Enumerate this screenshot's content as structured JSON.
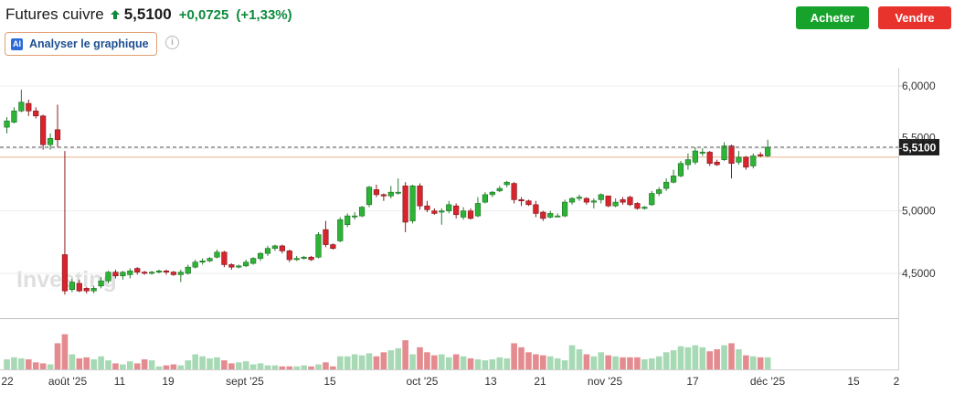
{
  "header": {
    "title": "Futures cuivre",
    "price": "5,5100",
    "change": "+0,0725",
    "change_pct": "(+1,33%)",
    "arrow_icon": "arrow-up-icon",
    "up_color": "#0e8a3c"
  },
  "buttons": {
    "buy_label": "Acheter",
    "sell_label": "Vendre",
    "buy_color": "#17a32b",
    "sell_color": "#e8332d"
  },
  "ai_button": {
    "badge": "AI",
    "label": "Analyser le graphique",
    "info_icon": "info-icon"
  },
  "watermark": "Investing",
  "chart_data": {
    "type": "candlestick",
    "y_range": [
      4.15,
      6.15
    ],
    "y_ticks": [
      "6,0000",
      "5,5000",
      "5,0000",
      "4,5000"
    ],
    "last_price_label": "5,5100",
    "x_tick_labels": [
      "22",
      "août '25",
      "11",
      "19",
      "sept '25",
      "15",
      "oct '25",
      "13",
      "21",
      "nov '25",
      "17",
      "déc '25",
      "15",
      "2"
    ],
    "up_color": "#2db336",
    "down_color": "#d8252d",
    "candles": [
      [
        5.67,
        5.72,
        5.62,
        5.75
      ],
      [
        5.71,
        5.8,
        5.7,
        5.83
      ],
      [
        5.8,
        5.87,
        5.79,
        5.97
      ],
      [
        5.86,
        5.8,
        5.76,
        5.89
      ],
      [
        5.8,
        5.76,
        5.74,
        5.83
      ],
      [
        5.76,
        5.53,
        5.49,
        5.77
      ],
      [
        5.53,
        5.58,
        5.49,
        5.62
      ],
      [
        5.65,
        5.57,
        5.51,
        5.85
      ],
      [
        4.65,
        4.36,
        4.33,
        5.48
      ],
      [
        4.37,
        4.43,
        4.35,
        4.46
      ],
      [
        4.42,
        4.36,
        4.35,
        4.45
      ],
      [
        4.38,
        4.36,
        4.34,
        4.39
      ],
      [
        4.36,
        4.38,
        4.34,
        4.4
      ],
      [
        4.4,
        4.44,
        4.38,
        4.47
      ],
      [
        4.44,
        4.51,
        4.42,
        4.52
      ],
      [
        4.51,
        4.48,
        4.46,
        4.53
      ],
      [
        4.48,
        4.51,
        4.45,
        4.52
      ],
      [
        4.49,
        4.52,
        4.46,
        4.54
      ],
      [
        4.54,
        4.51,
        4.49,
        4.55
      ],
      [
        4.51,
        4.5,
        4.49,
        4.52
      ],
      [
        4.5,
        4.51,
        4.49,
        4.52
      ],
      [
        4.51,
        4.52,
        4.5,
        4.53
      ],
      [
        4.52,
        4.51,
        4.49,
        4.53
      ],
      [
        4.51,
        4.49,
        4.48,
        4.52
      ],
      [
        4.49,
        4.51,
        4.43,
        4.53
      ],
      [
        4.5,
        4.55,
        4.49,
        4.57
      ],
      [
        4.55,
        4.59,
        4.54,
        4.61
      ],
      [
        4.59,
        4.6,
        4.57,
        4.62
      ],
      [
        4.6,
        4.62,
        4.59,
        4.63
      ],
      [
        4.63,
        4.67,
        4.62,
        4.69
      ],
      [
        4.67,
        4.57,
        4.55,
        4.68
      ],
      [
        4.57,
        4.55,
        4.53,
        4.58
      ],
      [
        4.55,
        4.56,
        4.54,
        4.57
      ],
      [
        4.56,
        4.59,
        4.55,
        4.61
      ],
      [
        4.58,
        4.62,
        4.57,
        4.63
      ],
      [
        4.62,
        4.66,
        4.6,
        4.67
      ],
      [
        4.66,
        4.7,
        4.64,
        4.72
      ],
      [
        4.7,
        4.72,
        4.68,
        4.73
      ],
      [
        4.72,
        4.68,
        4.66,
        4.73
      ],
      [
        4.68,
        4.61,
        4.59,
        4.69
      ],
      [
        4.61,
        4.62,
        4.6,
        4.64
      ],
      [
        4.62,
        4.63,
        4.61,
        4.64
      ],
      [
        4.63,
        4.61,
        4.6,
        4.64
      ],
      [
        4.63,
        4.81,
        4.62,
        4.83
      ],
      [
        4.85,
        4.73,
        4.71,
        4.92
      ],
      [
        4.73,
        4.7,
        4.69,
        4.74
      ],
      [
        4.76,
        4.93,
        4.75,
        4.95
      ],
      [
        4.89,
        4.96,
        4.87,
        4.98
      ],
      [
        4.96,
        4.96,
        4.93,
        4.99
      ],
      [
        4.96,
        5.03,
        4.95,
        5.04
      ],
      [
        5.05,
        5.19,
        5.03,
        5.2
      ],
      [
        5.17,
        5.13,
        5.11,
        5.21
      ],
      [
        5.13,
        5.12,
        5.08,
        5.14
      ],
      [
        5.12,
        5.15,
        5.1,
        5.2
      ],
      [
        5.15,
        5.15,
        5.13,
        5.26
      ],
      [
        5.2,
        4.91,
        4.83,
        5.23
      ],
      [
        4.92,
        5.2,
        4.9,
        5.21
      ],
      [
        5.2,
        5.04,
        5.01,
        5.22
      ],
      [
        5.04,
        5.01,
        4.99,
        5.08
      ],
      [
        5.0,
        4.98,
        4.97,
        5.02
      ],
      [
        4.99,
        5.0,
        4.89,
        5.02
      ],
      [
        5.0,
        5.05,
        4.98,
        5.08
      ],
      [
        5.04,
        4.97,
        4.94,
        5.06
      ],
      [
        4.95,
        5.0,
        4.93,
        5.03
      ],
      [
        5.0,
        4.94,
        4.93,
        5.02
      ],
      [
        4.96,
        5.06,
        4.95,
        5.11
      ],
      [
        5.07,
        5.13,
        5.06,
        5.15
      ],
      [
        5.13,
        5.15,
        5.11,
        5.16
      ],
      [
        5.16,
        5.18,
        5.15,
        5.2
      ],
      [
        5.21,
        5.23,
        5.19,
        5.24
      ],
      [
        5.22,
        5.09,
        5.06,
        5.23
      ],
      [
        5.09,
        5.08,
        5.04,
        5.11
      ],
      [
        5.08,
        5.05,
        5.04,
        5.09
      ],
      [
        5.05,
        4.98,
        4.95,
        5.08
      ],
      [
        4.99,
        4.94,
        4.92,
        5.0
      ],
      [
        4.95,
        4.98,
        4.94,
        5.0
      ],
      [
        4.96,
        4.96,
        4.95,
        4.98
      ],
      [
        4.96,
        5.07,
        4.95,
        5.09
      ],
      [
        5.07,
        5.1,
        5.05,
        5.11
      ],
      [
        5.1,
        5.11,
        5.08,
        5.13
      ],
      [
        5.1,
        5.07,
        5.05,
        5.11
      ],
      [
        5.07,
        5.08,
        5.02,
        5.1
      ],
      [
        5.09,
        5.13,
        5.06,
        5.14
      ],
      [
        5.12,
        5.04,
        5.03,
        5.12
      ],
      [
        5.04,
        5.07,
        5.03,
        5.1
      ],
      [
        5.09,
        5.07,
        5.05,
        5.11
      ],
      [
        5.11,
        5.05,
        5.04,
        5.12
      ],
      [
        5.06,
        5.02,
        5.01,
        5.07
      ],
      [
        5.02,
        5.03,
        5.01,
        5.04
      ],
      [
        5.05,
        5.14,
        5.04,
        5.16
      ],
      [
        5.14,
        5.17,
        5.12,
        5.19
      ],
      [
        5.18,
        5.23,
        5.16,
        5.26
      ],
      [
        5.23,
        5.28,
        5.22,
        5.33
      ],
      [
        5.28,
        5.38,
        5.27,
        5.4
      ],
      [
        5.37,
        5.41,
        5.33,
        5.46
      ],
      [
        5.39,
        5.48,
        5.37,
        5.51
      ],
      [
        5.47,
        5.47,
        5.44,
        5.5
      ],
      [
        5.47,
        5.38,
        5.36,
        5.48
      ],
      [
        5.39,
        5.37,
        5.36,
        5.41
      ],
      [
        5.41,
        5.52,
        5.4,
        5.55
      ],
      [
        5.52,
        5.38,
        5.26,
        5.53
      ],
      [
        5.39,
        5.43,
        5.37,
        5.48
      ],
      [
        5.43,
        5.35,
        5.33,
        5.44
      ],
      [
        5.36,
        5.44,
        5.34,
        5.46
      ],
      [
        5.45,
        5.44,
        5.43,
        5.47
      ],
      [
        5.44,
        5.51,
        5.43,
        5.57
      ]
    ],
    "volumes": [
      0.2,
      0.24,
      0.22,
      0.2,
      0.14,
      0.12,
      0.1,
      0.52,
      0.7,
      0.3,
      0.22,
      0.24,
      0.2,
      0.26,
      0.18,
      0.12,
      0.1,
      0.16,
      0.12,
      0.2,
      0.18,
      0.06,
      0.08,
      0.1,
      0.08,
      0.18,
      0.3,
      0.26,
      0.22,
      0.24,
      0.18,
      0.12,
      0.14,
      0.16,
      0.1,
      0.12,
      0.08,
      0.08,
      0.06,
      0.06,
      0.06,
      0.08,
      0.06,
      0.1,
      0.14,
      0.06,
      0.26,
      0.26,
      0.3,
      0.28,
      0.32,
      0.26,
      0.34,
      0.38,
      0.42,
      0.58,
      0.3,
      0.44,
      0.34,
      0.28,
      0.3,
      0.24,
      0.3,
      0.26,
      0.22,
      0.2,
      0.18,
      0.2,
      0.24,
      0.22,
      0.52,
      0.44,
      0.34,
      0.3,
      0.28,
      0.26,
      0.22,
      0.18,
      0.48,
      0.4,
      0.3,
      0.26,
      0.34,
      0.28,
      0.26,
      0.24,
      0.24,
      0.24,
      0.2,
      0.22,
      0.26,
      0.34,
      0.38,
      0.46,
      0.44,
      0.48,
      0.44,
      0.36,
      0.4,
      0.48,
      0.52,
      0.4,
      0.28,
      0.26,
      0.24,
      0.24
    ],
    "volume_up_color": "#a6d9b4",
    "volume_down_color": "#e48b8f",
    "last_price_line_color": "#555555",
    "reference_line_color": "#e8b48c",
    "reference_level": 5.43
  }
}
